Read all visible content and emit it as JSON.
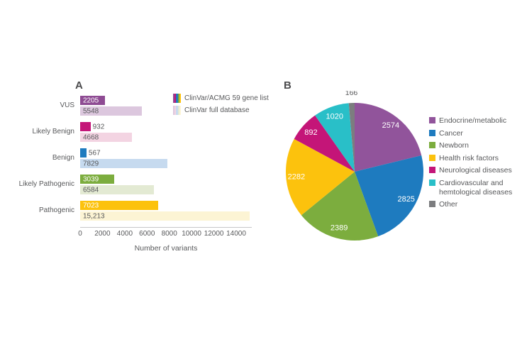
{
  "panels": {
    "a": {
      "letter": "A",
      "legend": [
        {
          "label": "ClinVar/ACMG 59 gene list",
          "swatch": "striped-dark"
        },
        {
          "label": "ClinVar full database",
          "swatch": "striped-light"
        }
      ],
      "chart_data": {
        "type": "bar",
        "orientation": "horizontal",
        "title": "",
        "xlabel": "Number of variants",
        "ylabel": "",
        "xlim": [
          0,
          15400
        ],
        "grid": false,
        "xticks": [
          0,
          2000,
          4000,
          6000,
          8000,
          10000,
          12000,
          14000
        ],
        "xtick_labels": [
          "0",
          "2000",
          "4000",
          "6000",
          "8000",
          "10000",
          "12000",
          "14000"
        ],
        "categories": [
          "VUS",
          "Likely Benign",
          "Benign",
          "Likely Pathogenic",
          "Pathogenic"
        ],
        "series": [
          {
            "name": "ClinVar/ACMG 59 gene list",
            "values": [
              2205,
              932,
              567,
              3039,
              7023
            ],
            "value_labels": [
              "2205",
              "932",
              "567",
              "3039",
              "7023"
            ],
            "colors": [
              "#8E4B93",
              "#C41578",
              "#1E7BBF",
              "#7CAD3E",
              "#FCC20D"
            ]
          },
          {
            "name": "ClinVar full database",
            "values": [
              5548,
              4668,
              7829,
              6584,
              15213
            ],
            "value_labels": [
              "5548",
              "4668",
              "7829",
              "6584",
              "15,213"
            ],
            "colors": [
              "#DCC7DE",
              "#F3D4E2",
              "#C6DAEF",
              "#E3EAD3",
              "#FCF4D4"
            ]
          }
        ]
      }
    },
    "b": {
      "letter": "B",
      "chart_data": {
        "type": "pie",
        "title": "",
        "start_angle_deg": 0,
        "direction": "clockwise",
        "legend_position": "right",
        "slices": [
          {
            "label": "Endocrine/metabolic",
            "value": 2574,
            "value_label": "2574",
            "color": "#91549B"
          },
          {
            "label": "Cancer",
            "value": 2825,
            "value_label": "2825",
            "color": "#1E7BBF"
          },
          {
            "label": "Newborn",
            "value": 2389,
            "value_label": "2389",
            "color": "#7CAD3E"
          },
          {
            "label": "Health risk factors",
            "value": 2282,
            "value_label": "2282",
            "color": "#FCC20D"
          },
          {
            "label": "Neurological diseases",
            "value": 892,
            "value_label": "892",
            "color": "#C41578"
          },
          {
            "label": "Cardiovascular and hemtological diseases",
            "value": 1020,
            "value_label": "1020",
            "color": "#29BFC8"
          },
          {
            "label": "Other",
            "value": 166,
            "value_label": "166",
            "color": "#7C7D7F"
          }
        ]
      }
    }
  },
  "colors": {
    "text": "#58595B",
    "panel_letter": "#4B4B4D",
    "axis_line": "#C6C7C9",
    "bar_value_inside": "#FFFFFF"
  }
}
